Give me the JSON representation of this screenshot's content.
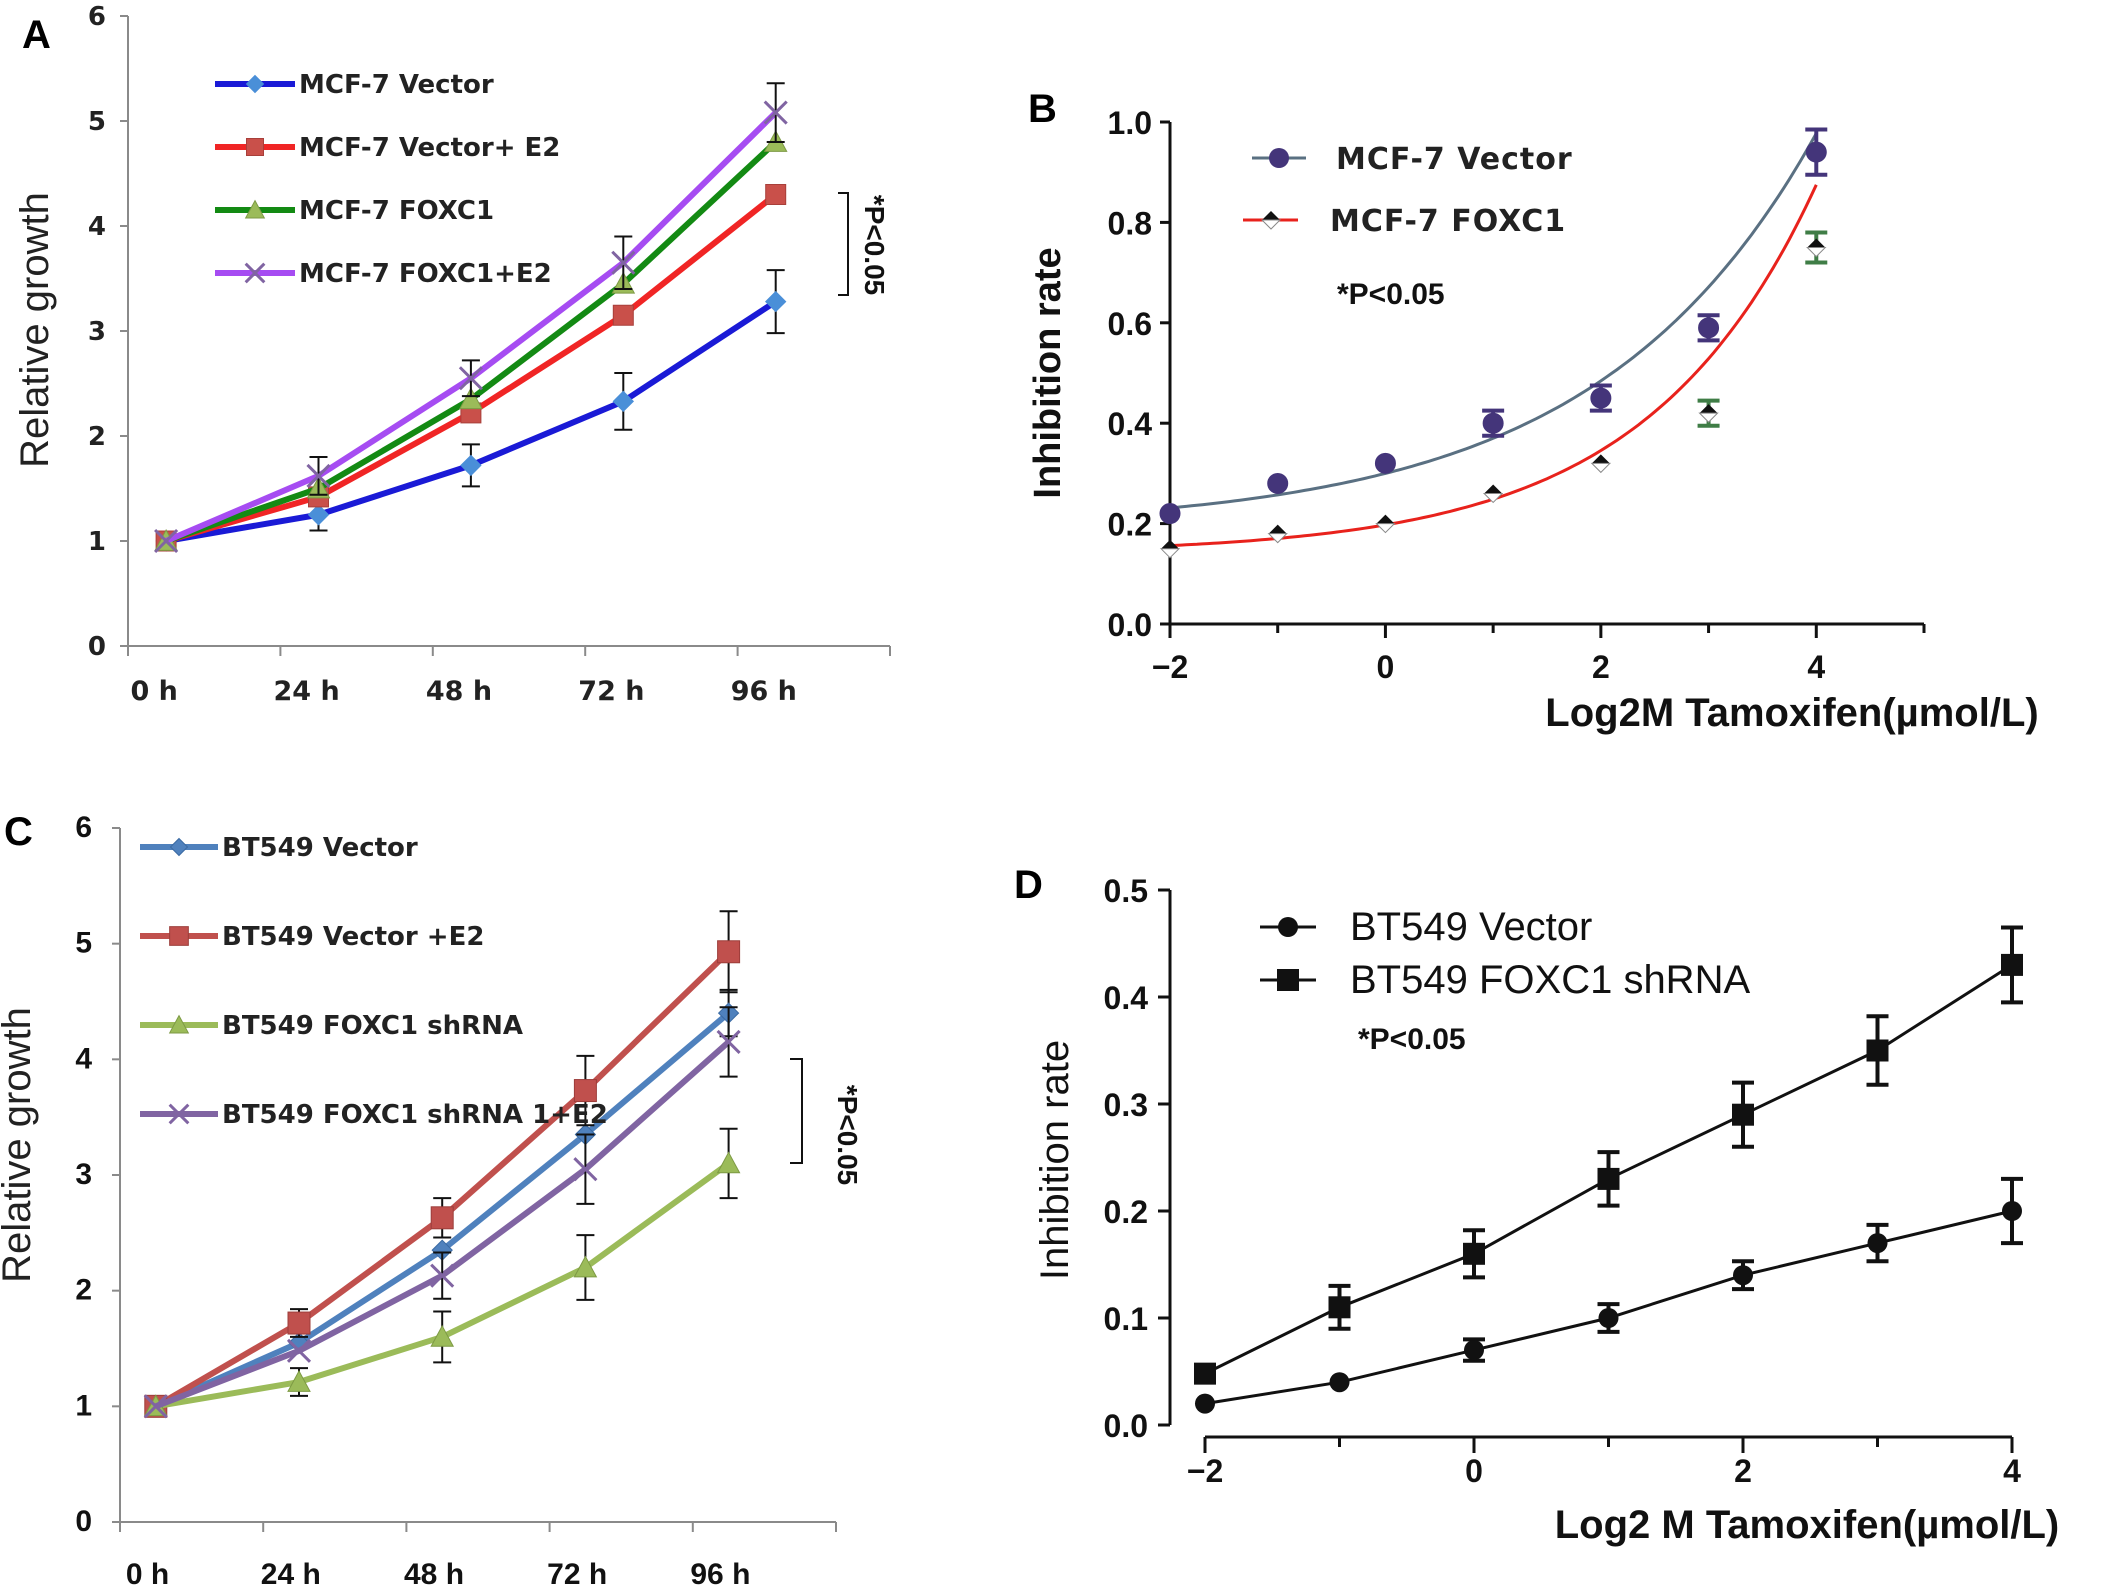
{
  "chart_data": [
    {
      "panel": "A",
      "type": "line",
      "categories": [
        "0 h",
        "24 h",
        "48 h",
        "72 h",
        "96 h"
      ],
      "ylabel": "Relative growth",
      "ylim": [
        0,
        6
      ],
      "yticks": [
        "0",
        "1",
        "2",
        "3",
        "4",
        "5",
        "6"
      ],
      "series": [
        {
          "name": "MCF-7 Vector",
          "color": "#1a1ad6",
          "marker": "diamond-marker-color:#4a8fd8",
          "values": [
            1,
            1.25,
            1.72,
            2.33,
            3.28
          ],
          "err": [
            0,
            0.15,
            0.2,
            0.27,
            0.3
          ]
        },
        {
          "name": "MCF-7 Vector+ E2",
          "color": "#f02525",
          "marker": "square-marker-color:#c9504a",
          "values": [
            1,
            1.42,
            2.22,
            3.15,
            4.3
          ],
          "err": [
            0,
            0,
            0,
            0,
            0
          ]
        },
        {
          "name": "MCF-7 FOXC1",
          "color": "#138a13",
          "marker": "triangle-marker-color:#9bbb59",
          "values": [
            1,
            1.5,
            2.35,
            3.45,
            4.8
          ],
          "err": [
            0,
            0,
            0,
            0,
            0
          ]
        },
        {
          "name": "MCF-7 FOXC1+E2",
          "color": "#a64cf2",
          "marker": "x-marker-color:#8064a2",
          "values": [
            1,
            1.62,
            2.55,
            3.65,
            5.08
          ],
          "err": [
            0,
            0.18,
            0.17,
            0.25,
            0.28
          ]
        }
      ],
      "significance": "*P<0.05"
    },
    {
      "panel": "B",
      "type": "scatter",
      "x": [
        -2,
        -1,
        0,
        1,
        2,
        3,
        4
      ],
      "xlim": [
        -2,
        5
      ],
      "xticks": [
        "−2",
        "0",
        "2",
        "4"
      ],
      "ylim": [
        0,
        1
      ],
      "yticks": [
        "0.0",
        "0.2",
        "0.4",
        "0.6",
        "0.8",
        "1.0"
      ],
      "ylabel": "Inhibition  rate",
      "xlabel": "Log2M  Tamoxifen(µmol/L)",
      "series": [
        {
          "name": "MCF-7 Vector",
          "color": "#44357a",
          "values": [
            0.22,
            0.28,
            0.32,
            0.4,
            0.45,
            0.59,
            0.94
          ],
          "err": [
            0,
            0,
            0,
            0.025,
            0.025,
            0.025,
            0.045
          ]
        },
        {
          "name": "MCF-7 FOXC1",
          "color": "#e8221c",
          "values": [
            0.15,
            0.18,
            0.2,
            0.26,
            0.32,
            0.42,
            0.75
          ],
          "err": [
            0,
            0,
            0,
            0,
            0,
            0.025,
            0.03
          ]
        }
      ],
      "significance": "*P<0.05"
    },
    {
      "panel": "C",
      "type": "line",
      "categories": [
        "0 h",
        "24 h",
        "48 h",
        "72 h",
        "96 h"
      ],
      "ylabel": "Relative growth",
      "ylim": [
        0,
        6
      ],
      "yticks": [
        "0",
        "1",
        "2",
        "3",
        "4",
        "5",
        "6"
      ],
      "series": [
        {
          "name": "BT549 Vector",
          "color": "#4f81bd",
          "values": [
            1,
            1.55,
            2.35,
            3.35,
            4.4
          ],
          "err": [
            0,
            0,
            0,
            0,
            0.2
          ]
        },
        {
          "name": "BT549 Vector +E2",
          "color": "#c0504d",
          "values": [
            1,
            1.72,
            2.63,
            3.73,
            4.93
          ],
          "err": [
            0,
            0.12,
            0.17,
            0.3,
            0.35
          ]
        },
        {
          "name": "BT549 FOXC1 shRNA",
          "color": "#9bbb59",
          "values": [
            1,
            1.21,
            1.6,
            2.2,
            3.1
          ],
          "err": [
            0,
            0.12,
            0.22,
            0.28,
            0.3
          ]
        },
        {
          "name": "BT549 FOXC1 shRNA 1+E2",
          "color": "#8064a2",
          "values": [
            1,
            1.48,
            2.13,
            3.05,
            4.15
          ],
          "err": [
            0,
            0,
            0.2,
            0.3,
            0.3
          ]
        }
      ],
      "significance": "*P<0.05"
    },
    {
      "panel": "D",
      "type": "line",
      "x": [
        -2,
        -1,
        0,
        1,
        2,
        3,
        4
      ],
      "xlim": [
        -2,
        4
      ],
      "xticks": [
        "−2",
        "0",
        "2",
        "4"
      ],
      "ylim": [
        0,
        0.5
      ],
      "yticks": [
        "0.0",
        "0.1",
        "0.2",
        "0.3",
        "0.4",
        "0.5"
      ],
      "ylabel": "Inhibition rate",
      "xlabel": "Log2 M  Tamoxifen(µmol/L)",
      "series": [
        {
          "name": "BT549 Vector",
          "marker": "circle",
          "values": [
            0.02,
            0.04,
            0.07,
            0.1,
            0.14,
            0.17,
            0.2
          ],
          "err": [
            0,
            0,
            0.01,
            0.013,
            0.013,
            0.017,
            0.03
          ]
        },
        {
          "name": "BT549 FOXC1 shRNA",
          "marker": "square",
          "values": [
            0.048,
            0.11,
            0.16,
            0.23,
            0.29,
            0.35,
            0.43
          ],
          "err": [
            0,
            0.02,
            0.022,
            0.025,
            0.03,
            0.032,
            0.035
          ]
        }
      ],
      "significance": "*P<0.05"
    }
  ],
  "panels": {
    "A": {
      "letter": "A",
      "note": "*P<0.05"
    },
    "B": {
      "letter": "B",
      "note": "*P<0.05"
    },
    "C": {
      "letter": "C",
      "note": "*P<0.05"
    },
    "D": {
      "letter": "D",
      "note": "*P<0.05"
    }
  }
}
